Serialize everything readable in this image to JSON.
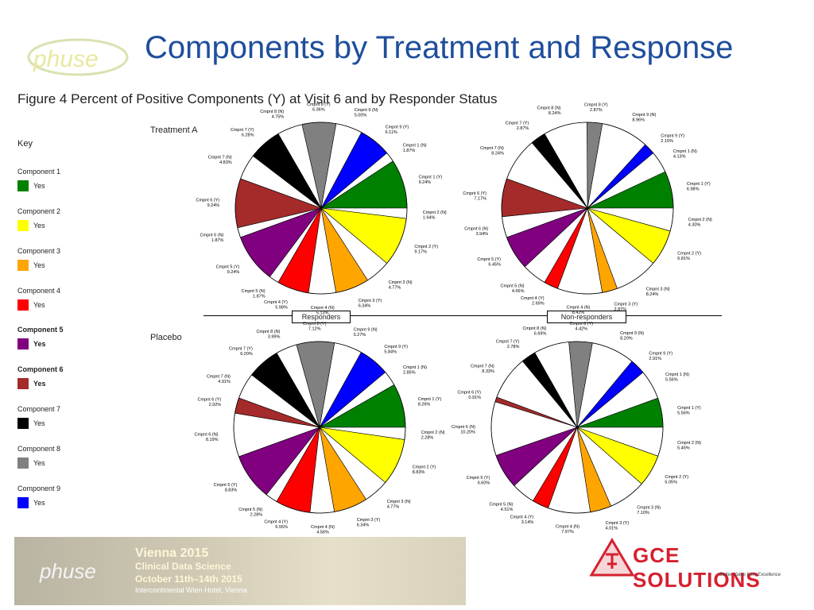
{
  "title": "Components by Treatment and Response",
  "figure_caption": "Figure 4   Percent of Positive Components (Y) at Visit 6 and by Responder Status",
  "logo_text": "phuse",
  "key": {
    "title": "Key",
    "items": [
      {
        "name": "Component 1",
        "value": "Yes",
        "color": "#008000"
      },
      {
        "name": "Component 2",
        "value": "Yes",
        "color": "#ffff00"
      },
      {
        "name": "Component 3",
        "value": "Yes",
        "color": "#ffa500"
      },
      {
        "name": "Component 4",
        "value": "Yes",
        "color": "#ff0000"
      },
      {
        "name": "Component 5",
        "value": "Yes",
        "color": "#800080",
        "bold": true
      },
      {
        "name": "Component 6",
        "value": "Yes",
        "color": "#a52a2a",
        "bold": true
      },
      {
        "name": "Component 7",
        "value": "Yes",
        "color": "#000000"
      },
      {
        "name": "Component 8",
        "value": "Yes",
        "color": "#808080"
      },
      {
        "name": "Component 9",
        "value": "Yes",
        "color": "#0000ff"
      }
    ]
  },
  "group_labels": {
    "treatment": "Treatment A",
    "placebo": "Placebo",
    "responders": "Responders",
    "nonresponders": "Non-responders"
  },
  "banner": {
    "logo": "phuse",
    "line1": "Vienna 2015",
    "line2": "Clinical Data Science",
    "line3": "October 11th–14th 2015",
    "line4": "Intercontinental Wien Hotel, Vienna"
  },
  "sponsor": {
    "name": "GCE SOLUTIONS",
    "tagline": "Better Value from Excellence"
  },
  "chart_data": [
    {
      "type": "pie",
      "title": "Treatment A – Responders",
      "slices": [
        {
          "label": "Cmpnt 1 (Y)",
          "value": 9.24,
          "color": "#008000"
        },
        {
          "label": "Cmpnt 1 (N)",
          "value": 1.87,
          "color": "#ffffff"
        },
        {
          "label": "Cmpnt 9 (Y)",
          "value": 6.11,
          "color": "#0000ff"
        },
        {
          "label": "Cmpnt 9 (N)",
          "value": 5.0,
          "color": "#ffffff"
        },
        {
          "label": "Cmpnt 8 (Y)",
          "value": 6.36,
          "color": "#808080"
        },
        {
          "label": "Cmpnt 8 (N)",
          "value": 4.75,
          "color": "#ffffff"
        },
        {
          "label": "Cmpnt 7 (Y)",
          "value": 6.28,
          "color": "#000000"
        },
        {
          "label": "Cmpnt 7 (N)",
          "value": 4.83,
          "color": "#ffffff"
        },
        {
          "label": "Cmpnt 6 (Y)",
          "value": 9.24,
          "color": "#a52a2a"
        },
        {
          "label": "Cmpnt 6 (N)",
          "value": 1.87,
          "color": "#ffffff"
        },
        {
          "label": "Cmpnt 5 (Y)",
          "value": 9.24,
          "color": "#800080"
        },
        {
          "label": "Cmpnt 5 (N)",
          "value": 1.87,
          "color": "#ffffff"
        },
        {
          "label": "Cmpnt 4 (Y)",
          "value": 5.98,
          "color": "#ff0000"
        },
        {
          "label": "Cmpnt 4 (N)",
          "value": 5.13,
          "color": "#ffffff"
        },
        {
          "label": "Cmpnt 3 (Y)",
          "value": 6.34,
          "color": "#ffa500"
        },
        {
          "label": "Cmpnt 3 (N)",
          "value": 4.77,
          "color": "#ffffff"
        },
        {
          "label": "Cmpnt 2 (Y)",
          "value": 9.17,
          "color": "#ffff00"
        },
        {
          "label": "Cmpnt 2 (N)",
          "value": 1.94,
          "color": "#ffffff"
        }
      ]
    },
    {
      "type": "pie",
      "title": "Treatment A – Non-responders",
      "slices": [
        {
          "label": "Cmpnt 1 (Y)",
          "value": 6.98,
          "color": "#008000"
        },
        {
          "label": "Cmpnt 1 (N)",
          "value": 4.13,
          "color": "#ffffff"
        },
        {
          "label": "Cmpnt 9 (Y)",
          "value": 2.15,
          "color": "#0000ff"
        },
        {
          "label": "Cmpnt 9 (N)",
          "value": 8.96,
          "color": "#ffffff"
        },
        {
          "label": "Cmpnt 8 (Y)",
          "value": 2.87,
          "color": "#808080"
        },
        {
          "label": "Cmpnt 8 (N)",
          "value": 8.24,
          "color": "#ffffff"
        },
        {
          "label": "Cmpnt 7 (Y)",
          "value": 2.87,
          "color": "#000000"
        },
        {
          "label": "Cmpnt 7 (N)",
          "value": 8.24,
          "color": "#ffffff"
        },
        {
          "label": "Cmpnt 6 (Y)",
          "value": 7.17,
          "color": "#a52a2a"
        },
        {
          "label": "Cmpnt 6 (N)",
          "value": 3.94,
          "color": "#ffffff"
        },
        {
          "label": "Cmpnt 5 (Y)",
          "value": 6.45,
          "color": "#800080"
        },
        {
          "label": "Cmpnt 5 (N)",
          "value": 4.66,
          "color": "#ffffff"
        },
        {
          "label": "Cmpnt 4 (Y)",
          "value": 2.69,
          "color": "#ff0000"
        },
        {
          "label": "Cmpnt 4 (N)",
          "value": 8.42,
          "color": "#ffffff"
        },
        {
          "label": "Cmpnt 3 (Y)",
          "value": 2.87,
          "color": "#ffa500"
        },
        {
          "label": "Cmpnt 3 (N)",
          "value": 8.24,
          "color": "#ffffff"
        },
        {
          "label": "Cmpnt 2 (Y)",
          "value": 6.81,
          "color": "#ffff00"
        },
        {
          "label": "Cmpnt 2 (N)",
          "value": 4.3,
          "color": "#ffffff"
        }
      ]
    },
    {
      "type": "pie",
      "title": "Placebo – Responders",
      "slices": [
        {
          "label": "Cmpnt 1 (Y)",
          "value": 8.26,
          "color": "#008000"
        },
        {
          "label": "Cmpnt 1 (N)",
          "value": 2.85,
          "color": "#ffffff"
        },
        {
          "label": "Cmpnt 9 (Y)",
          "value": 5.84,
          "color": "#0000ff"
        },
        {
          "label": "Cmpnt 9 (N)",
          "value": 5.27,
          "color": "#ffffff"
        },
        {
          "label": "Cmpnt 8 (Y)",
          "value": 7.12,
          "color": "#808080"
        },
        {
          "label": "Cmpnt 8 (N)",
          "value": 3.99,
          "color": "#ffffff"
        },
        {
          "label": "Cmpnt 7 (Y)",
          "value": 6.2,
          "color": "#000000"
        },
        {
          "label": "Cmpnt 7 (N)",
          "value": 4.91,
          "color": "#ffffff"
        },
        {
          "label": "Cmpnt 6 (Y)",
          "value": 2.92,
          "color": "#a52a2a"
        },
        {
          "label": "Cmpnt 6 (N)",
          "value": 8.19,
          "color": "#ffffff"
        },
        {
          "label": "Cmpnt 5 (Y)",
          "value": 8.83,
          "color": "#800080"
        },
        {
          "label": "Cmpnt 5 (N)",
          "value": 2.28,
          "color": "#ffffff"
        },
        {
          "label": "Cmpnt 4 (Y)",
          "value": 6.55,
          "color": "#ff0000"
        },
        {
          "label": "Cmpnt 4 (N)",
          "value": 4.56,
          "color": "#ffffff"
        },
        {
          "label": "Cmpnt 3 (Y)",
          "value": 6.34,
          "color": "#ffa500"
        },
        {
          "label": "Cmpnt 3 (N)",
          "value": 4.77,
          "color": "#ffffff"
        },
        {
          "label": "Cmpnt 2 (Y)",
          "value": 8.83,
          "color": "#ffff00"
        },
        {
          "label": "Cmpnt 2 (N)",
          "value": 2.28,
          "color": "#ffffff"
        }
      ]
    },
    {
      "type": "pie",
      "title": "Placebo – Non-responders",
      "slices": [
        {
          "label": "Cmpnt 1 (Y)",
          "value": 5.56,
          "color": "#008000"
        },
        {
          "label": "Cmpnt 1 (N)",
          "value": 5.56,
          "color": "#ffffff"
        },
        {
          "label": "Cmpnt 9 (Y)",
          "value": 2.91,
          "color": "#0000ff"
        },
        {
          "label": "Cmpnt 9 (N)",
          "value": 8.2,
          "color": "#ffffff"
        },
        {
          "label": "Cmpnt 8 (Y)",
          "value": 4.42,
          "color": "#808080"
        },
        {
          "label": "Cmpnt 8 (N)",
          "value": 6.69,
          "color": "#ffffff"
        },
        {
          "label": "Cmpnt 7 (Y)",
          "value": 2.78,
          "color": "#000000"
        },
        {
          "label": "Cmpnt 7 (N)",
          "value": 8.33,
          "color": "#ffffff"
        },
        {
          "label": "Cmpnt 6 (Y)",
          "value": 0.91,
          "color": "#a52a2a"
        },
        {
          "label": "Cmpnt 6 (N)",
          "value": 10.2,
          "color": "#ffffff"
        },
        {
          "label": "Cmpnt 5 (Y)",
          "value": 6.6,
          "color": "#800080"
        },
        {
          "label": "Cmpnt 5 (N)",
          "value": 4.51,
          "color": "#ffffff"
        },
        {
          "label": "Cmpnt 4 (Y)",
          "value": 3.14,
          "color": "#ff0000"
        },
        {
          "label": "Cmpnt 4 (N)",
          "value": 7.97,
          "color": "#ffffff"
        },
        {
          "label": "Cmpnt 3 (Y)",
          "value": 4.01,
          "color": "#ffa500"
        },
        {
          "label": "Cmpnt 3 (N)",
          "value": 7.1,
          "color": "#ffffff"
        },
        {
          "label": "Cmpnt 2 (Y)",
          "value": 6.05,
          "color": "#ffff00"
        },
        {
          "label": "Cmpnt 2 (N)",
          "value": 5.46,
          "color": "#ffffff"
        }
      ]
    }
  ]
}
